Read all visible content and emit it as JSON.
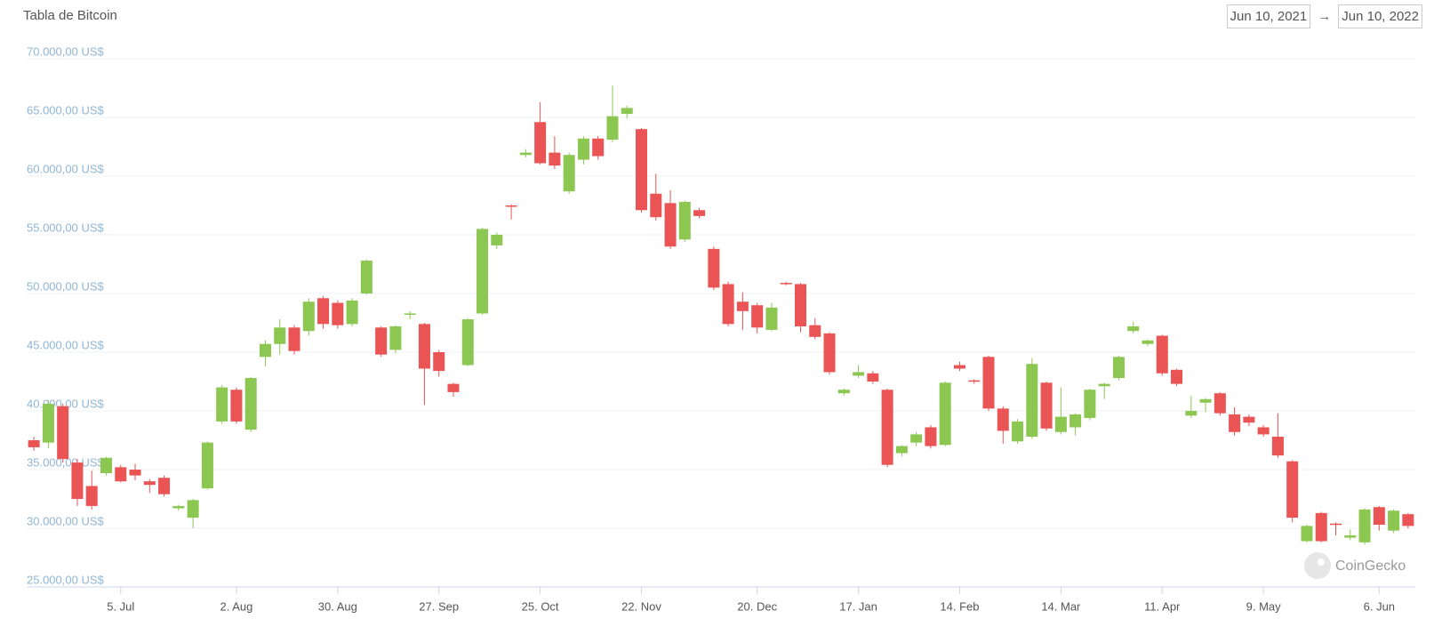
{
  "header": {
    "title": "Tabla de Bitcoin",
    "date_from": "Jun 10, 2021",
    "separator": "→",
    "date_to": "Jun 10, 2022"
  },
  "chart_data": {
    "type": "candlestick",
    "categories": [
      null,
      null,
      null,
      null,
      null,
      null,
      "5. Jul",
      null,
      null,
      null,
      null,
      null,
      null,
      null,
      "2. Aug",
      null,
      null,
      null,
      null,
      null,
      null,
      "30. Aug",
      null,
      null,
      null,
      null,
      null,
      null,
      "27. Sep",
      null,
      null,
      null,
      null,
      null,
      null,
      "25. Oct",
      null,
      null,
      null,
      null,
      null,
      null,
      "22. Nov",
      null,
      null,
      null,
      null,
      null,
      null,
      null,
      "20. Dec",
      null,
      null,
      null,
      null,
      null,
      null,
      "17. Jan",
      null,
      null,
      null,
      null,
      null,
      null,
      "14. Feb",
      null,
      null,
      null,
      null,
      null,
      null,
      "14. Mar",
      null,
      null,
      null,
      null,
      null,
      null,
      "11. Apr",
      null,
      null,
      null,
      null,
      null,
      null,
      "9. May",
      null,
      null,
      null,
      null,
      null,
      null,
      null,
      "6. Jun",
      null,
      null
    ],
    "open": [
      37500,
      37300,
      40400,
      35600,
      33600,
      34700,
      35200,
      35000,
      34000,
      34300,
      31700,
      30900,
      33400,
      39100,
      41800,
      38400,
      44600,
      45700,
      47100,
      46800,
      49600,
      49200,
      47400,
      50000,
      47100,
      45200,
      48200,
      47400,
      45000,
      42300,
      43900,
      48300,
      54100,
      57500,
      61800,
      64600,
      62000,
      58700,
      61400,
      63200,
      63100,
      65300,
      64000,
      58500,
      57700,
      54600,
      57100,
      53800,
      50800,
      49300,
      49000,
      46900,
      50900,
      50800,
      47300,
      46600,
      41500,
      43000,
      43200,
      41800,
      36400,
      37300,
      38600,
      37100,
      43900,
      42600,
      44600,
      40200,
      37400,
      37800,
      42400,
      38200,
      38600,
      39400,
      42100,
      42800,
      46800,
      45700,
      46400,
      43500,
      39600,
      40700,
      41500,
      39700,
      39500,
      38600,
      37800,
      35700,
      28900,
      31300,
      30400,
      29200,
      28800,
      31800,
      29800,
      31200
    ],
    "high": [
      37800,
      40900,
      40600,
      35900,
      34900,
      36100,
      35400,
      35500,
      34200,
      34500,
      32000,
      32500,
      37400,
      42200,
      42000,
      42900,
      46000,
      47800,
      47300,
      49600,
      49800,
      49400,
      49600,
      52900,
      47200,
      47300,
      48500,
      47500,
      45200,
      42400,
      47900,
      55600,
      55200,
      57600,
      62300,
      66300,
      63400,
      62000,
      63400,
      63400,
      67700,
      66000,
      64100,
      60200,
      58800,
      57900,
      57300,
      54000,
      51000,
      50100,
      49200,
      49200,
      51000,
      50900,
      47900,
      46700,
      41900,
      43900,
      43400,
      41900,
      37100,
      38200,
      38800,
      42500,
      44200,
      42700,
      44700,
      40400,
      39300,
      44500,
      42500,
      42000,
      39800,
      41900,
      42400,
      44700,
      47600,
      46100,
      46500,
      43600,
      41300,
      41100,
      41600,
      40300,
      39700,
      38800,
      39800,
      35800,
      30300,
      31400,
      30500,
      29900,
      31700,
      31900,
      31600,
      31300
    ],
    "low": [
      36600,
      36800,
      35600,
      31900,
      31600,
      34500,
      33900,
      34100,
      33000,
      32700,
      31500,
      30000,
      33300,
      38900,
      38900,
      38200,
      43800,
      44800,
      44800,
      46400,
      47000,
      47000,
      47200,
      49900,
      44600,
      44900,
      47800,
      40500,
      42900,
      41200,
      43800,
      48200,
      53800,
      56300,
      61600,
      61000,
      60600,
      58500,
      61000,
      61400,
      62900,
      64900,
      56900,
      56200,
      53800,
      54400,
      56400,
      50300,
      47200,
      46900,
      46600,
      46800,
      50700,
      46700,
      46100,
      43100,
      41300,
      42800,
      42300,
      35200,
      36100,
      37000,
      36800,
      37000,
      43400,
      42300,
      40000,
      37200,
      37200,
      37600,
      38300,
      38000,
      37900,
      39200,
      41000,
      42600,
      46600,
      45500,
      43000,
      42100,
      39400,
      39900,
      39600,
      37900,
      38700,
      37800,
      36000,
      30500,
      28800,
      28800,
      29400,
      29000,
      28600,
      29800,
      29600,
      30000
    ],
    "close": [
      36900,
      40600,
      35900,
      32500,
      31900,
      36000,
      34000,
      34500,
      33700,
      32900,
      31900,
      32400,
      37300,
      42000,
      39100,
      42800,
      45700,
      47100,
      45100,
      49300,
      47400,
      47300,
      49400,
      52800,
      44800,
      47200,
      48300,
      43600,
      43400,
      41600,
      47800,
      55500,
      55000,
      57400,
      62000,
      61100,
      60900,
      61800,
      63200,
      61700,
      65100,
      65800,
      57100,
      56500,
      54000,
      57800,
      56600,
      50500,
      47400,
      48500,
      47100,
      48800,
      50800,
      47200,
      46300,
      43300,
      41800,
      43300,
      42500,
      35400,
      37000,
      38000,
      37000,
      42400,
      43600,
      42500,
      40200,
      38300,
      39100,
      44000,
      38500,
      39500,
      39700,
      41800,
      42300,
      44600,
      47200,
      46000,
      43200,
      42300,
      40000,
      41000,
      39800,
      38200,
      39000,
      38000,
      36200,
      30900,
      30200,
      28900,
      30300,
      29400,
      31600,
      30300,
      31500,
      30200
    ],
    "up_color": "#8cc751",
    "down_color": "#ea5455",
    "ylim": [
      25000,
      70000
    ],
    "yticks": [
      {
        "value": 25000,
        "label": "25.000,00 US$"
      },
      {
        "value": 30000,
        "label": "30.000,00 US$"
      },
      {
        "value": 35000,
        "label": "35.000,00 US$"
      },
      {
        "value": 40000,
        "label": "40.000,00 US$"
      },
      {
        "value": 45000,
        "label": "45.000,00 US$"
      },
      {
        "value": 50000,
        "label": "50.000,00 US$"
      },
      {
        "value": 55000,
        "label": "55.000,00 US$"
      },
      {
        "value": 60000,
        "label": "60.000,00 US$"
      },
      {
        "value": 65000,
        "label": "65.000,00 US$"
      },
      {
        "value": 70000,
        "label": "70.000,00 US$"
      }
    ],
    "grid": true,
    "watermark": "CoinGecko"
  }
}
